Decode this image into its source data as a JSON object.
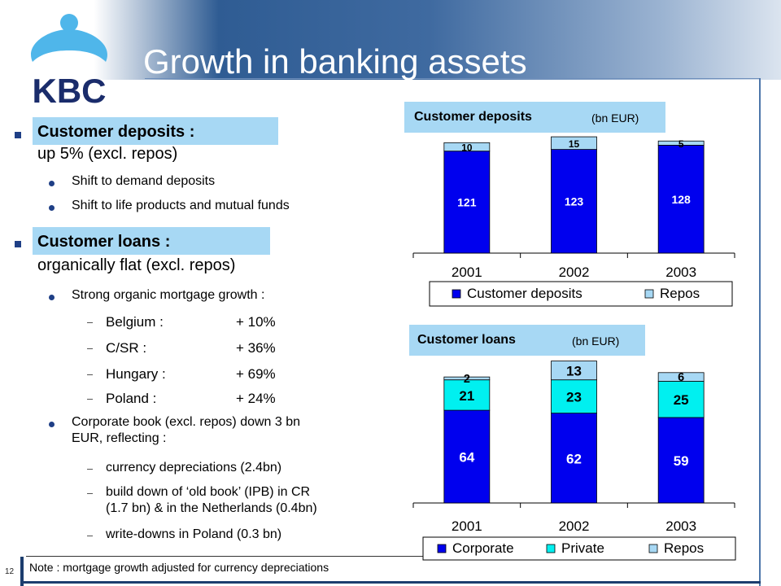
{
  "header": {
    "title": "Growth in banking assets",
    "logo_text": "KBC"
  },
  "left": {
    "deposits": {
      "heading": "Customer deposits :",
      "sub": "up 5% (excl. repos)",
      "bullets": [
        "Shift to demand deposits",
        "Shift to life products and mutual funds"
      ]
    },
    "loans": {
      "heading": "Customer loans :",
      "sub": "organically flat (excl. repos)",
      "bullet1": "Strong organic mortgage growth :",
      "growth": [
        {
          "country": "Belgium :",
          "value": "+ 10%"
        },
        {
          "country": "C/SR :",
          "value": "+ 36%"
        },
        {
          "country": "Hungary :",
          "value": "+ 69%"
        },
        {
          "country": "Poland :",
          "value": "+ 24%"
        }
      ],
      "bullet2_line1": "Corporate book (excl. repos) down 3 bn",
      "bullet2_line2": "EUR, reflecting :",
      "reasons": [
        [
          "currency depreciations (2.4bn)"
        ],
        [
          "build down of ‘old book’ (IPB) in CR",
          "(1.7 bn) & in the Netherlands (0.4bn)"
        ],
        [
          "write-downs in Poland (0.3 bn)"
        ]
      ]
    },
    "note": "Note : mortgage growth adjusted for currency depreciations",
    "page_number": "12"
  },
  "colors": {
    "primary": "#0000ee",
    "aqua": "#00f0f0",
    "light": "#a7d8f4",
    "header_blue": "#2f5c93"
  },
  "chart_data": [
    {
      "type": "bar",
      "stacked": true,
      "title": "Customer deposits",
      "unit": "(bn EUR)",
      "categories": [
        "2001",
        "2002",
        "2003"
      ],
      "series": [
        {
          "name": "Customer deposits",
          "color": "#0000ee",
          "values": [
            121,
            123,
            128
          ]
        },
        {
          "name": "Repos",
          "color": "#a7d8f4",
          "values": [
            10,
            15,
            5
          ]
        }
      ],
      "legend_position": "bottom"
    },
    {
      "type": "bar",
      "stacked": true,
      "title": "Customer loans",
      "unit": "(bn EUR)",
      "categories": [
        "2001",
        "2002",
        "2003"
      ],
      "series": [
        {
          "name": "Corporate",
          "color": "#0000ee",
          "values": [
            64,
            62,
            59
          ]
        },
        {
          "name": "Private",
          "color": "#00f0f0",
          "values": [
            21,
            23,
            25
          ]
        },
        {
          "name": "Repos",
          "color": "#a7d8f4",
          "values": [
            2,
            13,
            6
          ]
        }
      ],
      "legend_position": "bottom"
    }
  ]
}
